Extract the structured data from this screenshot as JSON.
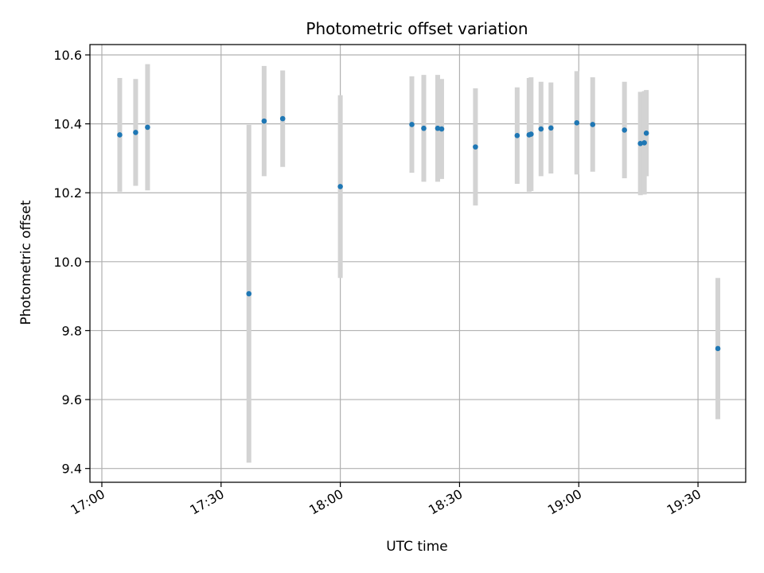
{
  "chart_data": {
    "type": "scatter",
    "title": "Photometric offset variation",
    "xlabel": "UTC time",
    "ylabel": "Photometric offset",
    "grid": true,
    "x_unit": "UTC time of day (HH:MM)",
    "xlim": [
      "16:57",
      "19:42"
    ],
    "ylim": [
      9.36,
      10.63
    ],
    "xticks": [
      "17:00",
      "17:30",
      "18:00",
      "18:30",
      "19:00",
      "19:30"
    ],
    "yticks": [
      "9.4",
      "9.6",
      "9.8",
      "10.0",
      "10.2",
      "10.4",
      "10.6"
    ],
    "marker_color": "#1f77b4",
    "errorbar_color": "#d3d3d3",
    "points": [
      {
        "time": "17:04:30",
        "y": 10.368,
        "err": 0.165
      },
      {
        "time": "17:08:30",
        "y": 10.375,
        "err": 0.155
      },
      {
        "time": "17:11:30",
        "y": 10.39,
        "err": 0.183
      },
      {
        "time": "17:37:00",
        "y": 9.907,
        "err": 0.49
      },
      {
        "time": "17:40:50",
        "y": 10.408,
        "err": 0.16
      },
      {
        "time": "17:45:30",
        "y": 10.415,
        "err": 0.14
      },
      {
        "time": "18:00:00",
        "y": 10.218,
        "err": 0.265
      },
      {
        "time": "18:18:00",
        "y": 10.398,
        "err": 0.14
      },
      {
        "time": "18:21:00",
        "y": 10.387,
        "err": 0.155
      },
      {
        "time": "18:24:30",
        "y": 10.387,
        "err": 0.155
      },
      {
        "time": "18:25:30",
        "y": 10.385,
        "err": 0.145
      },
      {
        "time": "18:34:00",
        "y": 10.333,
        "err": 0.17
      },
      {
        "time": "18:44:30",
        "y": 10.366,
        "err": 0.14
      },
      {
        "time": "18:47:30",
        "y": 10.368,
        "err": 0.165
      },
      {
        "time": "18:48:00",
        "y": 10.37,
        "err": 0.165
      },
      {
        "time": "18:50:30",
        "y": 10.385,
        "err": 0.137
      },
      {
        "time": "18:53:00",
        "y": 10.388,
        "err": 0.132
      },
      {
        "time": "18:59:30",
        "y": 10.403,
        "err": 0.15
      },
      {
        "time": "19:03:30",
        "y": 10.398,
        "err": 0.137
      },
      {
        "time": "19:11:30",
        "y": 10.382,
        "err": 0.14
      },
      {
        "time": "19:15:30",
        "y": 10.343,
        "err": 0.15
      },
      {
        "time": "19:16:30",
        "y": 10.345,
        "err": 0.15
      },
      {
        "time": "19:17:00",
        "y": 10.373,
        "err": 0.125
      },
      {
        "time": "19:35:00",
        "y": 9.748,
        "err": 0.205
      }
    ]
  }
}
